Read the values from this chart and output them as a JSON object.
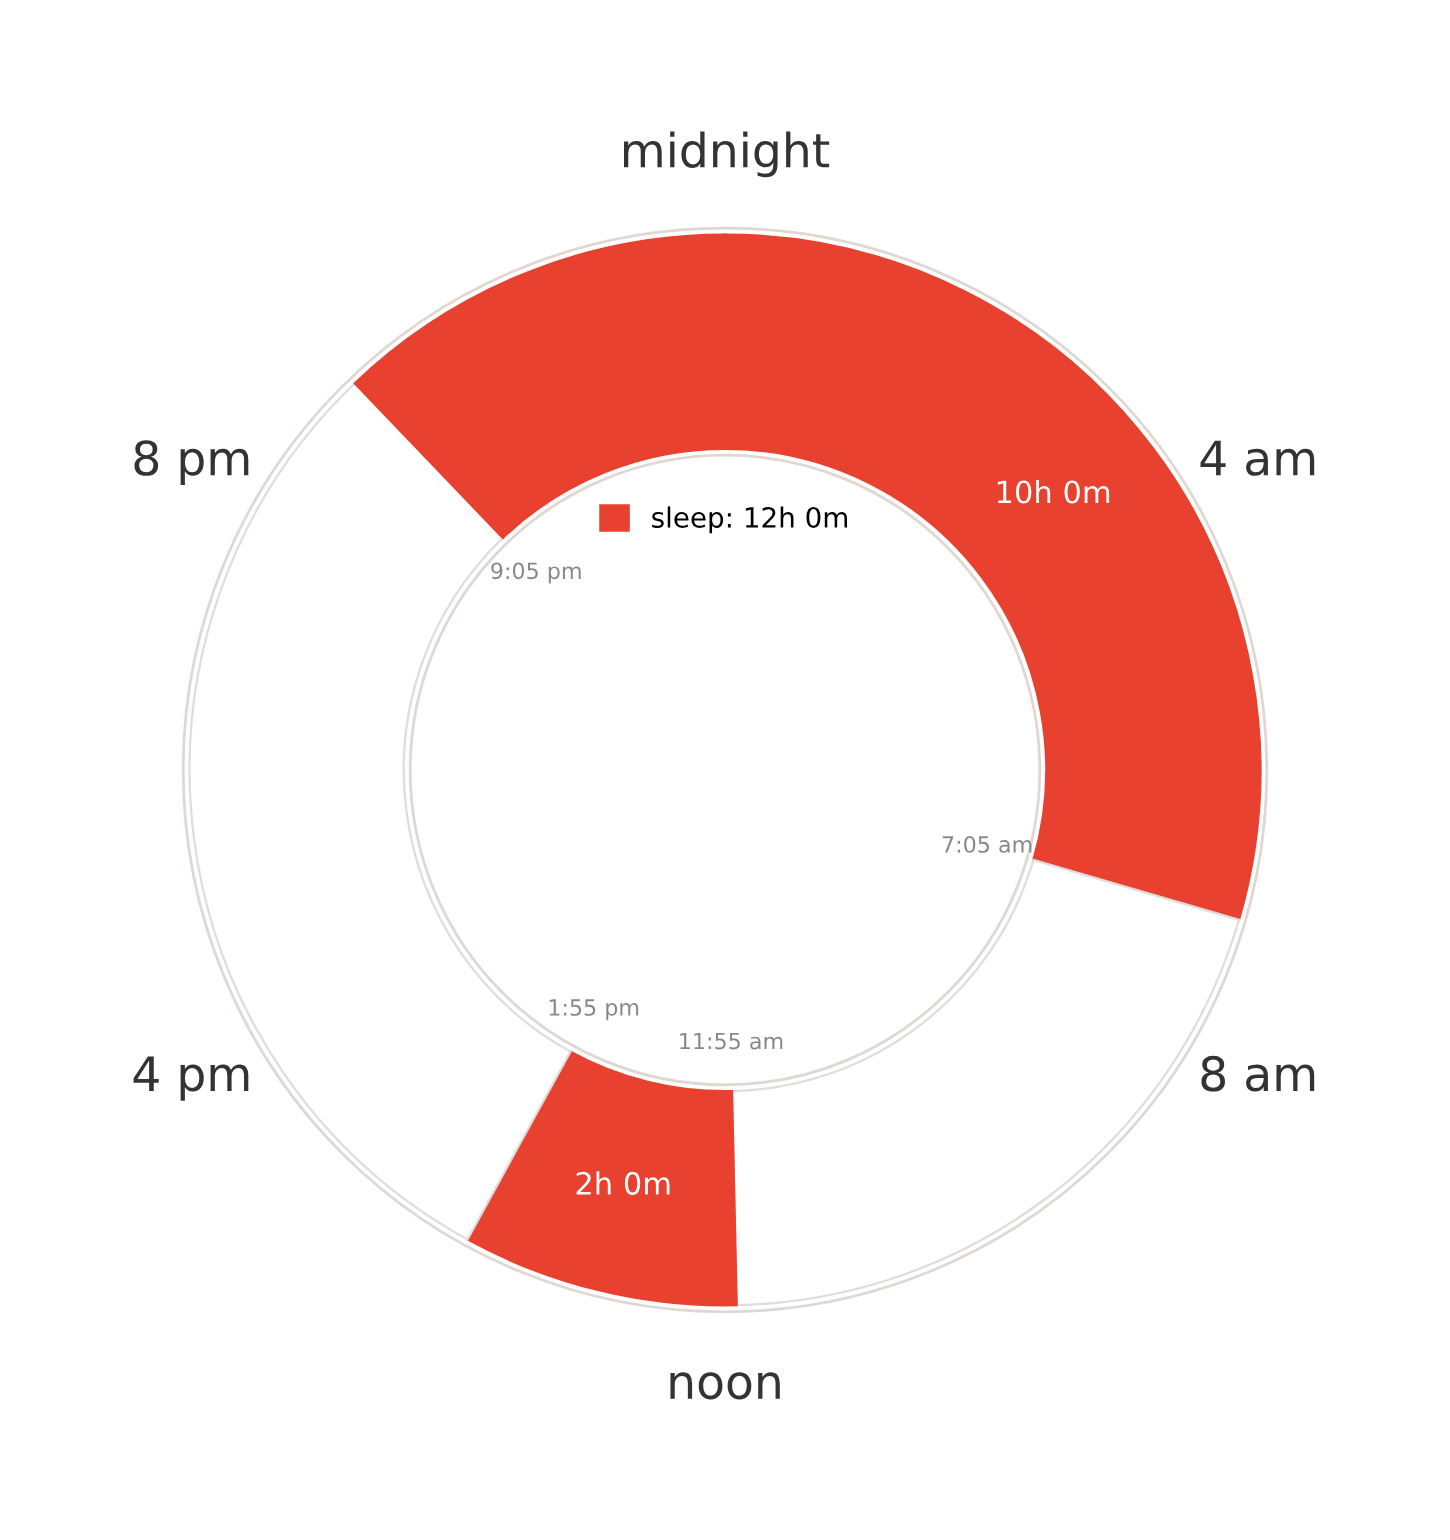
{
  "chart_data": {
    "type": "donut",
    "categories": [
      "sleep: 12h 0m",
      null,
      null,
      null,
      null
    ],
    "values": [
      7.0833,
      4.8333,
      2,
      7.1667,
      2.9167
    ],
    "colors": [
      "#e8412f",
      "#ffffff",
      "#e8412f",
      "#ffffff",
      "#e8412f"
    ],
    "value_labels": [
      null,
      null,
      "2h 0m",
      null,
      null
    ],
    "annotations": [
      "midnight",
      "4 am",
      "8 am",
      "noon",
      "4 pm",
      "8 pm",
      "7:05 am",
      "11:55 am",
      "1:55 pm",
      "9:05 pm",
      "10h 0m"
    ],
    "legend": "center"
  }
}
